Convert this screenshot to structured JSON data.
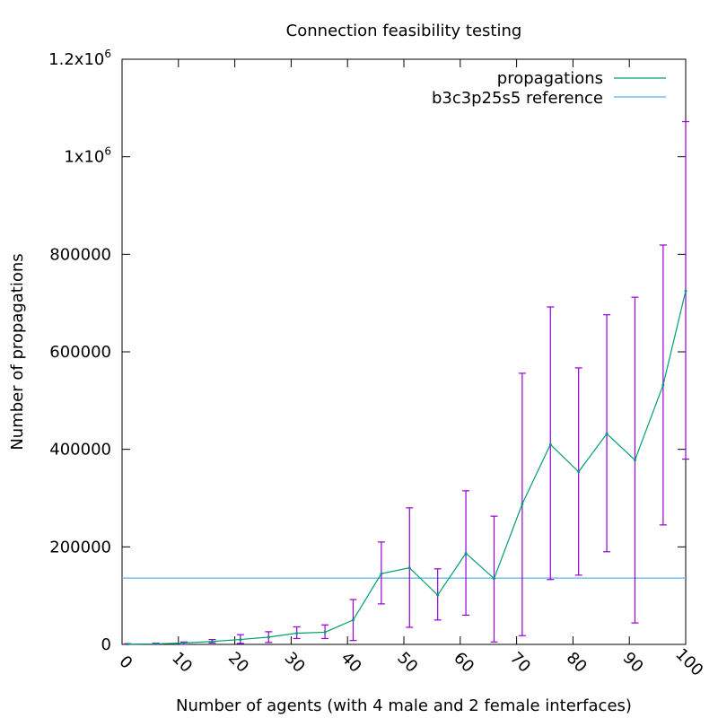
{
  "chart_data": {
    "type": "line",
    "title": "Connection feasibility testing",
    "xlabel": "Number of agents (with 4 male and 2 female interfaces)",
    "ylabel": "Number of propagations",
    "xlim": [
      0,
      100
    ],
    "ylim": [
      0,
      1200000
    ],
    "x_ticks": [
      0,
      10,
      20,
      30,
      40,
      50,
      60,
      70,
      80,
      90,
      100
    ],
    "x_tick_labels": [
      "0",
      "10",
      "20",
      "30",
      "40",
      "50",
      "60",
      "70",
      "80",
      "90",
      "100"
    ],
    "y_ticks": [
      0,
      200000,
      400000,
      600000,
      800000,
      1000000,
      1200000
    ],
    "y_tick_labels": [
      {
        "base": "0",
        "exp": ""
      },
      {
        "base": "200000",
        "exp": ""
      },
      {
        "base": "400000",
        "exp": ""
      },
      {
        "base": "600000",
        "exp": ""
      },
      {
        "base": "800000",
        "exp": ""
      },
      {
        "base": "1x10",
        "exp": "6"
      },
      {
        "base": "1.2x10",
        "exp": "6"
      }
    ],
    "grid": false,
    "legend_position": "top-right",
    "series": [
      {
        "name": "propagations",
        "color": "#009e73",
        "errorbar_color": "#9400d3",
        "x": [
          1,
          6,
          11,
          16,
          21,
          26,
          31,
          36,
          41,
          46,
          51,
          56,
          61,
          66,
          71,
          76,
          81,
          86,
          91,
          96,
          100
        ],
        "y": [
          500,
          1000,
          3000,
          6000,
          10000,
          15000,
          23000,
          25000,
          50000,
          145000,
          157000,
          101000,
          187000,
          135000,
          288000,
          410000,
          354000,
          432000,
          378000,
          532000,
          725000
        ],
        "yerr_low": [
          0,
          0,
          0,
          3000,
          2000,
          4000,
          12000,
          12000,
          8000,
          83000,
          35000,
          50000,
          60000,
          5000,
          18000,
          133000,
          142000,
          190000,
          44000,
          245000,
          380000
        ],
        "yerr_high": [
          1500,
          2500,
          5000,
          10000,
          20000,
          26000,
          36000,
          40000,
          92000,
          210000,
          280000,
          155000,
          315000,
          263000,
          556000,
          692000,
          567000,
          676000,
          712000,
          819000,
          1072000
        ]
      },
      {
        "name": "b3c3p25s5 reference",
        "color": "#56b4e9",
        "constant_y": 136000
      }
    ]
  }
}
